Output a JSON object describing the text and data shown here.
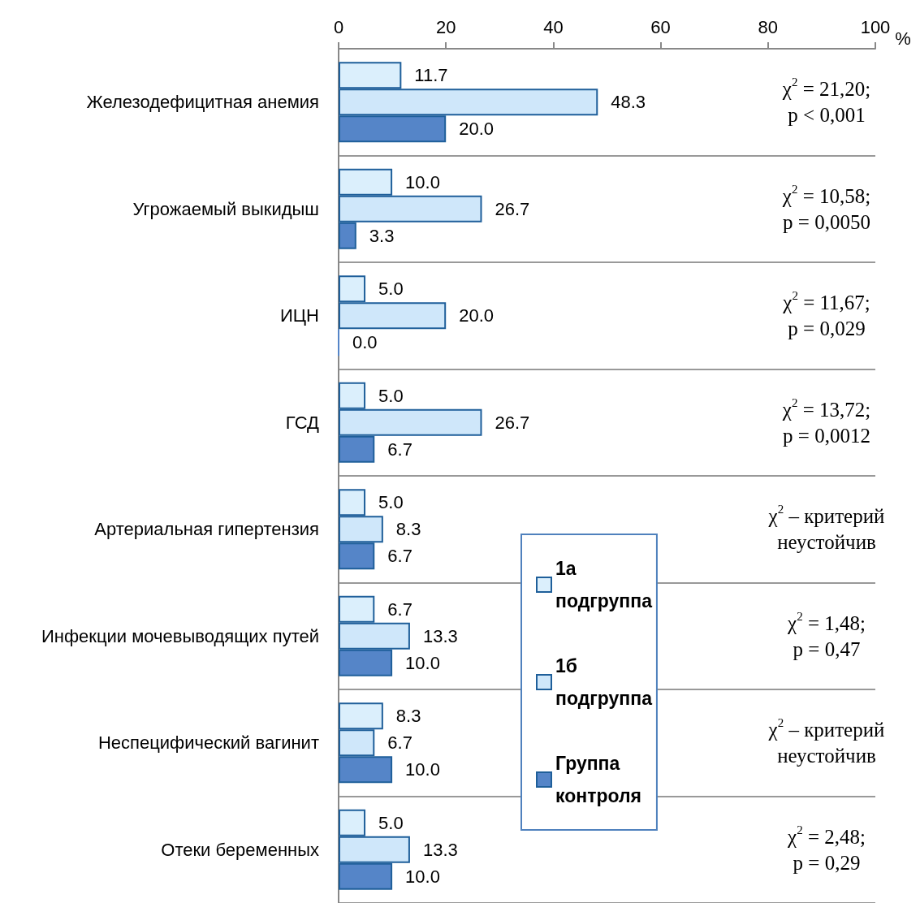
{
  "chart_data": {
    "type": "bar",
    "orientation": "horizontal",
    "xlabel": "%",
    "categories": [
      "Железодефицитная анемия",
      "Угрожаемый выкидыш",
      "ИЦН",
      "ГСД",
      "Артериальная гипертензия",
      "Инфекции мочевыводящих путей",
      "Неспецифический вагинит",
      "Отеки беременных"
    ],
    "series": [
      {
        "name": "1а подгруппа",
        "color": "#dbeffc",
        "values": [
          11.7,
          10.0,
          5.0,
          5.0,
          5.0,
          6.7,
          8.3,
          5.0
        ],
        "value_labels": [
          "11.7",
          "10.0",
          "5.0",
          "5.0",
          "5.0",
          "6.7",
          "8.3",
          "5.0"
        ]
      },
      {
        "name": "1б подгруппа",
        "color": "#cfe7fa",
        "values": [
          48.3,
          26.7,
          20.0,
          26.7,
          8.3,
          13.3,
          6.7,
          13.3
        ],
        "value_labels": [
          "48.3",
          "26.7",
          "20.0",
          "26.7",
          "8.3",
          "13.3",
          "6.7",
          "13.3"
        ]
      },
      {
        "name": "Группа контроля",
        "color": "#5585c8",
        "values": [
          20.0,
          3.3,
          0.0,
          6.7,
          6.7,
          10.0,
          10.0,
          10.0
        ],
        "value_labels": [
          "20.0",
          "3.3",
          "0.0",
          "6.7",
          "6.7",
          "10.0",
          "10.0",
          "10.0"
        ]
      }
    ],
    "xlim": [
      0,
      100
    ],
    "xticks": [
      0,
      20,
      40,
      60,
      80,
      100
    ],
    "grid": "y",
    "legend": "right",
    "annotations": [
      "χ$^{2}$ = 21,20;\np < 0,001",
      "χ$^{2}$ = 10,58;\np = 0,0050",
      "χ$^{2}$ = 11,67;\np = 0,029",
      "χ$^{2}$ = 13,72;\np = 0,0012",
      "χ$^{2}$ – критерий\nнеустойчив",
      "χ$^{2}$ = 1,48;\np = 0,47",
      "χ$^{2}$ – критерий\nнеустойчив",
      "χ$^{2}$ = 2,48;\np = 0,29"
    ]
  }
}
